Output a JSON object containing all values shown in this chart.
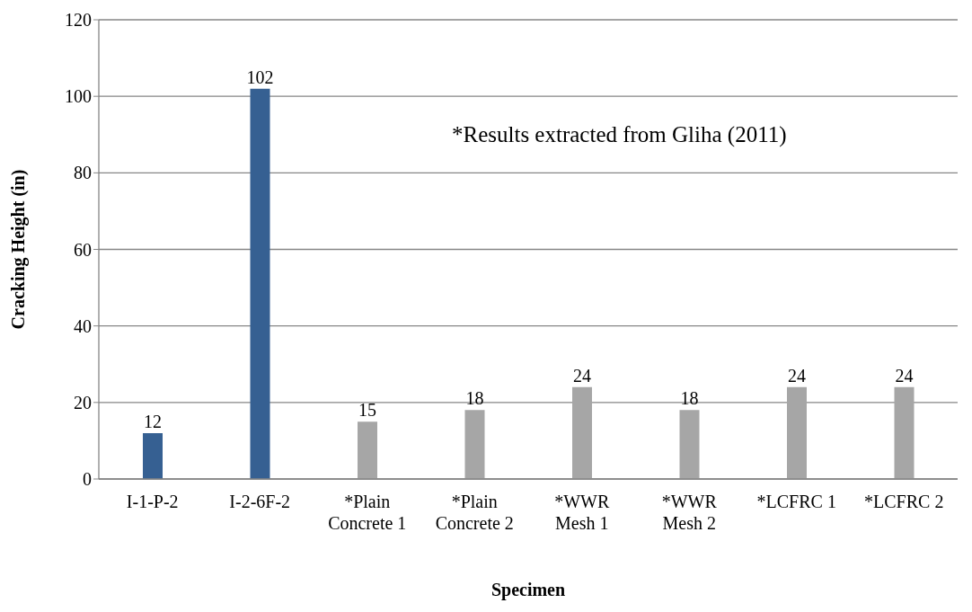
{
  "chart_data": {
    "type": "bar",
    "xlabel": "Specimen",
    "ylabel": "Cracking Height (in)",
    "categories": [
      "I-1-P-2",
      "I-2-6F-2",
      "*Plain Concrete 1",
      "*Plain Concrete 2",
      "*WWR Mesh 1",
      "*WWR Mesh 2",
      "*LCFRC 1",
      "*LCFRC 2"
    ],
    "values": [
      12,
      102,
      15,
      18,
      24,
      18,
      24,
      24
    ],
    "colors": [
      "#366092",
      "#366092",
      "#a6a6a6",
      "#a6a6a6",
      "#a6a6a6",
      "#a6a6a6",
      "#a6a6a6",
      "#a6a6a6"
    ],
    "ylim": [
      0,
      120
    ],
    "yticks": [
      0,
      20,
      40,
      60,
      80,
      100,
      120
    ],
    "grid": "y",
    "data_labels": true,
    "legend": false,
    "annotations": [
      "*Results extracted from Gliha (2011)"
    ]
  }
}
